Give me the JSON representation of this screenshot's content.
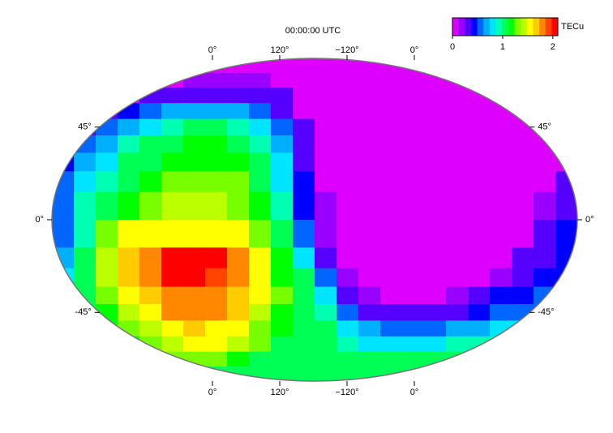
{
  "chart_data": {
    "type": "heatmap",
    "title": "00:00:00 UTC",
    "colorbar_label": "TECu",
    "zlim": [
      0,
      2.1
    ],
    "zticks": [
      0,
      1,
      2
    ],
    "colors": [
      "#dd00ff",
      "#9900ff",
      "#5500ff",
      "#0000ff",
      "#0066ff",
      "#00b0ff",
      "#00e5ff",
      "#00ffb0",
      "#00ff55",
      "#00ff00",
      "#77ff00",
      "#bbff00",
      "#ffff00",
      "#ffcc00",
      "#ff8800",
      "#ff4400",
      "#ff0000"
    ],
    "lat_edges": [
      90,
      80,
      70,
      60,
      50,
      40,
      30,
      20,
      10,
      0,
      -10,
      -20,
      -30,
      -40,
      -50,
      -60,
      -70,
      -80,
      -90
    ],
    "lat_ticks": [
      {
        "value": 45,
        "label": "45°"
      },
      {
        "value": 0,
        "label": "0°"
      },
      {
        "value": -45,
        "label": "-45°"
      }
    ],
    "lon_ticks": [
      {
        "value": 0,
        "label": "0°"
      },
      {
        "value": 120,
        "label": "120°"
      },
      {
        "value": -120,
        "label": "−120°"
      },
      {
        "value": 0,
        "label": "0°"
      }
    ],
    "values": [
      [
        0.05,
        0.05,
        0.05,
        0.05,
        0.05,
        0.05,
        0.05,
        0.05,
        0.05,
        0.05,
        0.05,
        0.05,
        0.05,
        0.05,
        0.05,
        0.05,
        0.05,
        0.05,
        0.05,
        0.05,
        0.05,
        0.05,
        0.05,
        0.05
      ],
      [
        0.05,
        0.05,
        0.05,
        0.05,
        0.05,
        0.05,
        0.2,
        0.2,
        0.2,
        0.2,
        0.05,
        0.05,
        0.05,
        0.05,
        0.05,
        0.05,
        0.05,
        0.05,
        0.05,
        0.05,
        0.05,
        0.05,
        0.05,
        0.05
      ],
      [
        0.05,
        0.05,
        0.05,
        0.1,
        0.3,
        0.3,
        0.3,
        0.3,
        0.3,
        0.3,
        0.3,
        0.05,
        0.05,
        0.05,
        0.05,
        0.05,
        0.05,
        0.05,
        0.05,
        0.05,
        0.05,
        0.05,
        0.05,
        0.05
      ],
      [
        0.1,
        0.2,
        0.3,
        0.4,
        0.55,
        0.65,
        0.7,
        0.7,
        0.65,
        0.5,
        0.3,
        0.1,
        0.05,
        0.05,
        0.05,
        0.05,
        0.05,
        0.05,
        0.05,
        0.05,
        0.05,
        0.05,
        0.05,
        0.05
      ],
      [
        0.2,
        0.3,
        0.5,
        0.65,
        0.8,
        0.95,
        1.0,
        1.0,
        0.95,
        0.8,
        0.5,
        0.25,
        0.08,
        0.05,
        0.05,
        0.05,
        0.05,
        0.05,
        0.05,
        0.05,
        0.05,
        0.05,
        0.05,
        0.05
      ],
      [
        0.3,
        0.5,
        0.7,
        0.9,
        1.0,
        1.1,
        1.15,
        1.15,
        1.1,
        0.95,
        0.65,
        0.3,
        0.08,
        0.05,
        0.05,
        0.05,
        0.05,
        0.05,
        0.05,
        0.05,
        0.05,
        0.05,
        0.05,
        0.05
      ],
      [
        0.4,
        0.7,
        0.85,
        1.0,
        1.1,
        1.15,
        1.2,
        1.2,
        1.15,
        1.0,
        0.75,
        0.35,
        0.1,
        0.05,
        0.05,
        0.05,
        0.05,
        0.05,
        0.05,
        0.05,
        0.05,
        0.05,
        0.05,
        0.1
      ],
      [
        0.5,
        0.8,
        0.95,
        1.05,
        1.15,
        1.25,
        1.3,
        1.3,
        1.25,
        1.05,
        0.85,
        0.4,
        0.12,
        0.05,
        0.05,
        0.05,
        0.05,
        0.05,
        0.05,
        0.05,
        0.05,
        0.05,
        0.1,
        0.3
      ],
      [
        0.55,
        0.9,
        1.0,
        1.15,
        1.3,
        1.4,
        1.45,
        1.45,
        1.35,
        1.15,
        0.9,
        0.45,
        0.15,
        0.05,
        0.05,
        0.05,
        0.05,
        0.05,
        0.05,
        0.05,
        0.05,
        0.05,
        0.2,
        0.35
      ],
      [
        0.6,
        0.95,
        1.3,
        1.55,
        1.6,
        1.6,
        1.6,
        1.6,
        1.55,
        1.3,
        1.0,
        0.6,
        0.2,
        0.05,
        0.05,
        0.05,
        0.05,
        0.05,
        0.05,
        0.05,
        0.05,
        0.1,
        0.3,
        0.4
      ],
      [
        0.7,
        1.05,
        1.4,
        1.7,
        1.85,
        2.0,
        2.05,
        2.0,
        1.8,
        1.55,
        1.2,
        0.85,
        0.35,
        0.1,
        0.05,
        0.05,
        0.05,
        0.05,
        0.05,
        0.05,
        0.1,
        0.25,
        0.35,
        0.4
      ],
      [
        0.8,
        1.1,
        1.4,
        1.65,
        1.85,
        2.0,
        2.05,
        1.9,
        1.75,
        1.5,
        1.2,
        1.0,
        0.5,
        0.15,
        0.05,
        0.05,
        0.05,
        0.05,
        0.05,
        0.1,
        0.2,
        0.35,
        0.4,
        0.4
      ],
      [
        0.8,
        1.1,
        1.3,
        1.5,
        1.7,
        1.85,
        1.85,
        1.8,
        1.7,
        1.5,
        1.25,
        1.05,
        0.75,
        0.35,
        0.15,
        0.1,
        0.1,
        0.12,
        0.2,
        0.3,
        0.4,
        0.45,
        0.5,
        0.5
      ],
      [
        0.85,
        1.0,
        1.2,
        1.4,
        1.55,
        1.75,
        1.8,
        1.75,
        1.65,
        1.45,
        1.2,
        1.05,
        0.95,
        0.6,
        0.35,
        0.3,
        0.3,
        0.3,
        0.35,
        0.45,
        0.55,
        0.6,
        0.6,
        0.6
      ],
      [
        0.9,
        1.0,
        1.15,
        1.3,
        1.45,
        1.6,
        1.7,
        1.6,
        1.5,
        1.35,
        1.15,
        1.05,
        1.0,
        0.85,
        0.65,
        0.6,
        0.6,
        0.6,
        0.65,
        0.7,
        0.75,
        0.8,
        0.8,
        0.8
      ],
      [
        0.9,
        1.0,
        1.1,
        1.2,
        1.35,
        1.45,
        1.55,
        1.5,
        1.4,
        1.25,
        1.1,
        1.05,
        1.0,
        0.95,
        0.85,
        0.8,
        0.85,
        0.85,
        0.9,
        0.9,
        0.95,
        0.95,
        0.95,
        0.95
      ],
      [
        1.05,
        1.05,
        1.05,
        1.05,
        1.15,
        1.25,
        1.3,
        1.25,
        1.2,
        1.1,
        1.05,
        1.0,
        1.0,
        1.0,
        1.0,
        1.0,
        1.0,
        1.0,
        1.0,
        1.0,
        1.0,
        1.0,
        1.0,
        1.0
      ],
      [
        1.05,
        1.05,
        1.05,
        1.05,
        1.05,
        1.05,
        1.05,
        1.05,
        1.05,
        1.05,
        1.05,
        1.05,
        1.05,
        1.05,
        1.05,
        1.05,
        1.05,
        1.05,
        1.05,
        1.05,
        1.05,
        1.05,
        1.05,
        1.05
      ]
    ]
  }
}
